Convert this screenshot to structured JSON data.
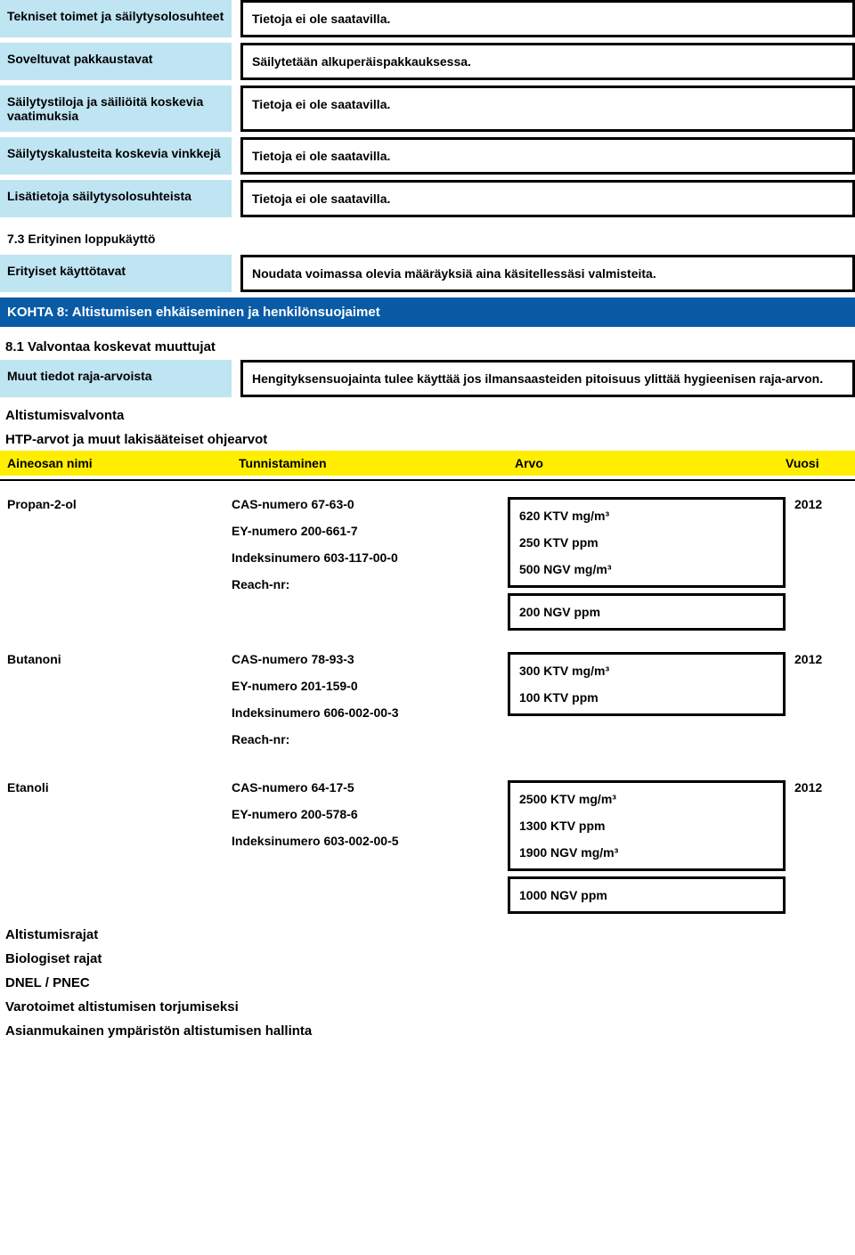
{
  "rows": {
    "r1_label": "Tekniset toimet ja säilytysolosuhteet",
    "r1_value": "Tietoja ei ole saatavilla.",
    "r2_label": "Soveltuvat pakkaustavat",
    "r2_value": "Säilytetään alkuperäispakkauksessa.",
    "r3_label": "Säilytystiloja ja säiliöitä koskevia vaatimuksia",
    "r3_value": "Tietoja ei ole saatavilla.",
    "r4_label": "Säilytyskalusteita koskevia vinkkejä",
    "r4_value": "Tietoja ei ole saatavilla.",
    "r5_label": "Lisätietoja säilytysolosuhteista",
    "r5_value": "Tietoja ei ole saatavilla.",
    "r6_label": "7.3 Erityinen loppukäyttö",
    "r7_label": "Erityiset käyttötavat",
    "r7_value": "Noudata voimassa olevia määräyksiä aina käsitellessäsi valmisteita."
  },
  "section8": "KOHTA 8: Altistumisen ehkäiseminen ja henkilönsuojaimet",
  "sub81": "8.1 Valvontaa koskevat muuttujat",
  "muut_label": "Muut tiedot raja-arvoista",
  "muut_value": "Hengityksensuojainta tulee käyttää jos ilmansaasteiden pitoisuus ylittää hygieenisen raja-arvon.",
  "altis": "Altistumisvalvonta",
  "htp": "HTP-arvot ja muut lakisääteiset ohjearvot",
  "thead": {
    "c1": "Aineosan nimi",
    "c2": "Tunnistaminen",
    "c3": "Arvo",
    "c4": "Vuosi"
  },
  "ing1": {
    "name": "Propan-2-ol",
    "id1": "CAS-numero 67-63-0",
    "id2": "EY-numero 200-661-7",
    "id3": "Indeksinumero 603-117-00-0",
    "id4": "Reach-nr:",
    "v1": "620 KTV mg/m³",
    "v2": "250 KTV ppm",
    "v3": "500 NGV mg/m³",
    "v4": "200 NGV ppm",
    "year": "2012"
  },
  "ing2": {
    "name": "Butanoni",
    "id1": "CAS-numero 78-93-3",
    "id2": "EY-numero 201-159-0",
    "id3": "Indeksinumero 606-002-00-3",
    "id4": "Reach-nr:",
    "v1": "300 KTV mg/m³",
    "v2": "100 KTV ppm",
    "year": "2012"
  },
  "ing3": {
    "name": "Etanoli",
    "id1": "CAS-numero 64-17-5",
    "id2": "EY-numero 200-578-6",
    "id3": "Indeksinumero 603-002-00-5",
    "v1": "2500 KTV mg/m³",
    "v2": "1300 KTV ppm",
    "v3": "1900 NGV mg/m³",
    "v4": "1000 NGV ppm",
    "year": "2012"
  },
  "bottom": {
    "b1": "Altistumisrajat",
    "b2": "Biologiset rajat",
    "b3": "DNEL / PNEC",
    "b4": "Varotoimet altistumisen torjumiseksi",
    "b5": "Asianmukainen ympäristön altistumisen hallinta"
  },
  "colors": {
    "label_bg": "#bfe4f2",
    "section_bg": "#0a5ba6",
    "table_head_bg": "#ffee00",
    "border": "#000000"
  }
}
